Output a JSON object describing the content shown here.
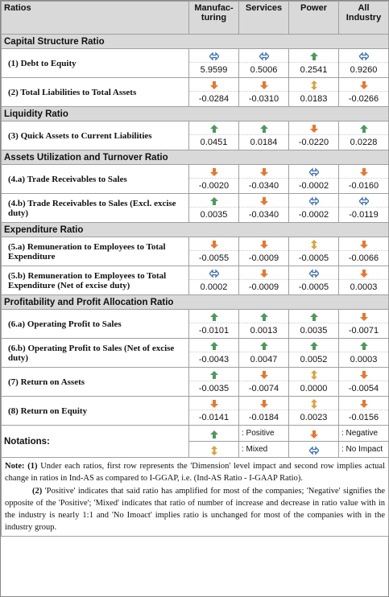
{
  "header": {
    "columns": [
      "Ratios",
      "Manufac-turing",
      "Services",
      "Power",
      "All Industry"
    ]
  },
  "sections": [
    {
      "title": "Capital Structure Ratio",
      "rows": [
        {
          "label": "(1)  Debt to Equity",
          "values": [
            "5.9599",
            "0.5006",
            "0.2541",
            "0.9260"
          ]
        },
        {
          "label": "(2)  Total Liabilities to Total Assets",
          "values": [
            "-0.0284",
            "-0.0310",
            "0.0183",
            "-0.0266"
          ]
        }
      ]
    },
    {
      "title": "Liquidity Ratio",
      "rows": [
        {
          "label": "(3)  Quick Assets to Current Liabilities",
          "values": [
            "0.0451",
            "0.0184",
            "-0.0220",
            "0.0228"
          ]
        }
      ]
    },
    {
      "title": "Assets Utilization and Turnover Ratio",
      "rows": [
        {
          "label": "(4.a)  Trade Receivables to Sales",
          "values": [
            "-0.0020",
            "-0.0340",
            "-0.0002",
            "-0.0160"
          ]
        },
        {
          "label": "(4.b)  Trade Receivables to Sales (Excl. excise duty)",
          "values": [
            "0.0035",
            "-0.0340",
            "-0.0002",
            "-0.0119"
          ]
        }
      ]
    },
    {
      "title": "Expenditure Ratio",
      "rows": [
        {
          "label": "(5.a)  Remuneration to Employees to Total Expenditure",
          "values": [
            "-0.0055",
            "-0.0009",
            "-0.0005",
            "-0.0066"
          ]
        },
        {
          "label": "(5.b)  Remuneration to Employees to Total Expenditure (Net of excise duty)",
          "values": [
            "0.0002",
            "-0.0009",
            "-0.0005",
            "0.0003"
          ]
        }
      ]
    },
    {
      "title": "Profitability and Profit Allocation Ratio",
      "rows": [
        {
          "label": "(6.a)  Operating Profit to Sales",
          "values": [
            "-0.0101",
            "0.0013",
            "0.0035",
            "-0.0071"
          ]
        },
        {
          "label": "(6.b)  Operating Profit to Sales (Net of excise duty)",
          "values": [
            "-0.0043",
            "0.0047",
            "0.0052",
            "0.0003"
          ]
        },
        {
          "label": "(7)  Return on Assets",
          "values": [
            "-0.0035",
            "-0.0074",
            "0.0000",
            "-0.0054"
          ]
        },
        {
          "label": "(8)  Return on Equity",
          "values": [
            "-0.0141",
            "-0.0184",
            "0.0023",
            "-0.0156"
          ]
        }
      ]
    }
  ],
  "notations": {
    "title": "Notations:",
    "positive": ": Positive",
    "negative": ": Negative",
    "mixed": ": Mixed",
    "no_impact": ": No Impact"
  },
  "note": {
    "label": "Note:",
    "p1_num": "(1)",
    "p1_text": "Under each ratios, first row represents the 'Dimension' level impact and second row implies actual change in ratios in Ind-AS as compared to I-GGAP, i.e. (Ind-AS Ratio - I-GAAP Ratio).",
    "p2_num": "(2)",
    "p2_text": "'Positive' indicates that said ratio has amplified for most of the companies; 'Negative' signifies the opposite of the 'Positive'; 'Mixed' indicates that ratio of number of increase and decrease in ratio value with in the industry is nearly 1:1 and 'No Imoact' implies ratio is unchanged for most of the companies with in the industry group."
  }
}
